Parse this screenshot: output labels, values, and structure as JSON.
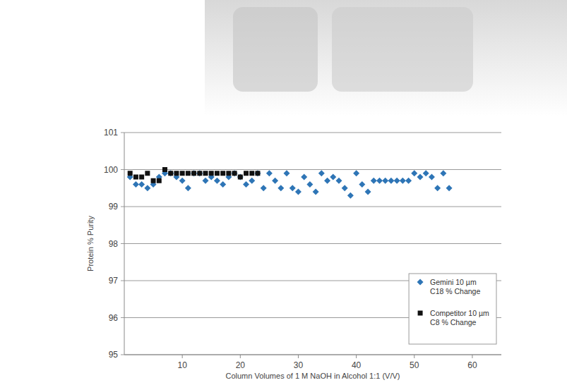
{
  "chart_data": {
    "type": "scatter",
    "x_label": "Column Volumes of 1 M NaOH in Alcohol 1:1 (V/V)",
    "y_label": "Protein % Purity",
    "xlim": [
      0,
      65
    ],
    "xticks": [
      10,
      20,
      30,
      40,
      50,
      60
    ],
    "ylim": [
      95,
      101
    ],
    "yticks": [
      95,
      96,
      97,
      98,
      99,
      100,
      101
    ],
    "grid": true,
    "legend": "bottom-right",
    "series": [
      {
        "name": "Gemini 10 µm C18 % Change",
        "color": "#2e75b6",
        "marker": "diamond",
        "x": [
          1,
          2,
          3,
          4,
          5,
          6,
          7,
          8,
          9,
          10,
          11,
          12,
          13,
          14,
          15,
          16,
          17,
          18,
          19,
          20,
          21,
          22,
          23,
          24,
          25,
          26,
          27,
          28,
          29,
          30,
          31,
          32,
          33,
          34,
          35,
          36,
          37,
          38,
          39,
          40,
          41,
          42,
          43,
          44,
          45,
          46,
          47,
          48,
          49,
          50,
          51,
          52,
          53,
          54,
          55,
          56
        ],
        "values": [
          99.8,
          99.6,
          99.6,
          99.5,
          99.6,
          99.8,
          99.9,
          99.9,
          99.8,
          99.7,
          99.5,
          99.9,
          99.9,
          99.7,
          99.8,
          99.7,
          99.6,
          99.8,
          99.9,
          99.8,
          99.6,
          99.7,
          99.9,
          99.5,
          99.9,
          99.7,
          99.5,
          99.9,
          99.5,
          99.4,
          99.8,
          99.6,
          99.4,
          99.9,
          99.7,
          99.8,
          99.7,
          99.5,
          99.3,
          99.9,
          99.6,
          99.4,
          99.7,
          99.7,
          99.7,
          99.7,
          99.7,
          99.7,
          99.7,
          99.9,
          99.8,
          99.9,
          99.8,
          99.5,
          99.9,
          99.5
        ]
      },
      {
        "name": "Competitor 10 µm C8 % Change",
        "color": "#111111",
        "marker": "square",
        "x": [
          1,
          2,
          3,
          4,
          5,
          6,
          7,
          8,
          9,
          10,
          11,
          12,
          13,
          14,
          15,
          16,
          17,
          18,
          19,
          20,
          21,
          22,
          23
        ],
        "values": [
          99.9,
          99.8,
          99.8,
          99.9,
          99.7,
          99.7,
          100.0,
          99.9,
          99.9,
          99.9,
          99.9,
          99.9,
          99.9,
          99.9,
          99.9,
          99.9,
          99.9,
          99.9,
          99.9,
          99.8,
          99.9,
          99.9,
          99.9
        ]
      }
    ]
  }
}
